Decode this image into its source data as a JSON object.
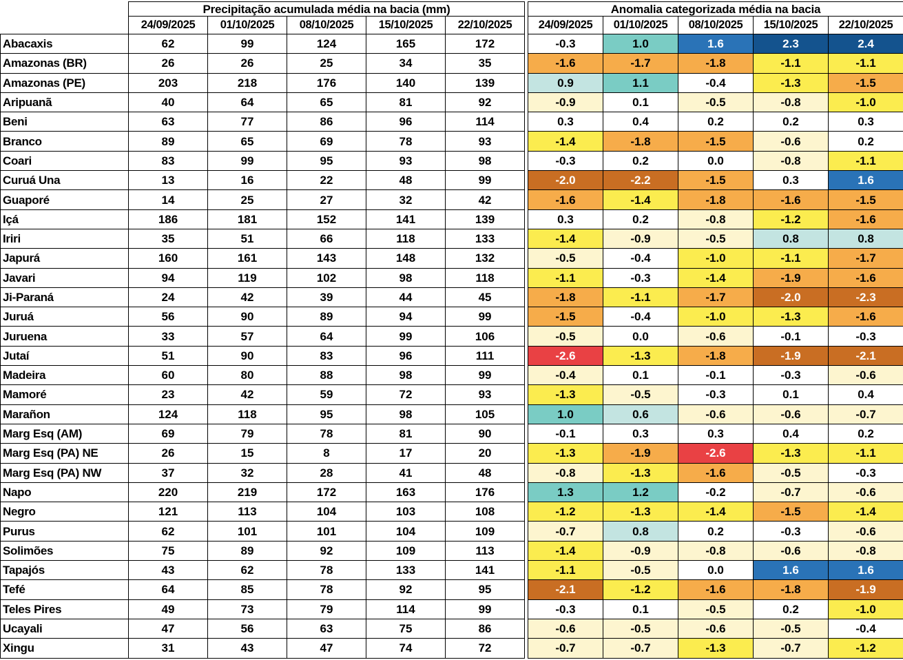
{
  "left_table": {
    "title": "Precipitação acumulada média na bacia (mm)",
    "dates": [
      "24/09/2025",
      "01/10/2025",
      "08/10/2025",
      "15/10/2025",
      "22/10/2025"
    ]
  },
  "right_table": {
    "title": "Anomalia categorizada média na bacia",
    "dates": [
      "24/09/2025",
      "01/10/2025",
      "08/10/2025",
      "15/10/2025",
      "22/10/2025"
    ]
  },
  "anomaly_colors": {
    "p2": {
      "bg": "#14538e",
      "fg": "#ffffff"
    },
    "p15": {
      "bg": "#2a73b7",
      "fg": "#ffffff"
    },
    "p10": {
      "bg": "#7accc4",
      "fg": "#000000"
    },
    "p06": {
      "bg": "#c3e4e1",
      "fg": "#000000"
    },
    "w": {
      "bg": "#ffffff",
      "fg": "#000000"
    },
    "n05": {
      "bg": "#fdf5cf",
      "fg": "#000000"
    },
    "n10": {
      "bg": "#fbec4f",
      "fg": "#000000"
    },
    "n15": {
      "bg": "#f6ac4a",
      "fg": "#000000"
    },
    "n20": {
      "bg": "#c96e23",
      "fg": "#ffffff"
    },
    "n26": {
      "bg": "#e94144",
      "fg": "#ffffff"
    }
  },
  "rows": [
    {
      "name": "Abacaxis",
      "precip": [
        62,
        99,
        124,
        165,
        172
      ],
      "anom": [
        "-0.3",
        "1.0",
        "1.6",
        "2.3",
        "2.4"
      ],
      "cat": [
        "w",
        "p10",
        "p15",
        "p2",
        "p2"
      ]
    },
    {
      "name": "Amazonas (BR)",
      "precip": [
        26,
        26,
        25,
        34,
        35
      ],
      "anom": [
        "-1.6",
        "-1.7",
        "-1.8",
        "-1.1",
        "-1.1"
      ],
      "cat": [
        "n15",
        "n15",
        "n15",
        "n10",
        "n10"
      ]
    },
    {
      "name": "Amazonas (PE)",
      "precip": [
        203,
        218,
        176,
        140,
        139
      ],
      "anom": [
        "0.9",
        "1.1",
        "-0.4",
        "-1.3",
        "-1.5"
      ],
      "cat": [
        "p06",
        "p10",
        "w",
        "n10",
        "n15"
      ]
    },
    {
      "name": "Aripuanã",
      "precip": [
        40,
        64,
        65,
        81,
        92
      ],
      "anom": [
        "-0.9",
        "0.1",
        "-0.5",
        "-0.8",
        "-1.0"
      ],
      "cat": [
        "n05",
        "w",
        "n05",
        "n05",
        "n10"
      ]
    },
    {
      "name": "Beni",
      "precip": [
        63,
        77,
        86,
        96,
        114
      ],
      "anom": [
        "0.3",
        "0.4",
        "0.2",
        "0.2",
        "0.3"
      ],
      "cat": [
        "w",
        "w",
        "w",
        "w",
        "w"
      ]
    },
    {
      "name": "Branco",
      "precip": [
        89,
        65,
        69,
        78,
        93
      ],
      "anom": [
        "-1.4",
        "-1.8",
        "-1.5",
        "-0.6",
        "0.2"
      ],
      "cat": [
        "n10",
        "n15",
        "n15",
        "n05",
        "w"
      ]
    },
    {
      "name": "Coari",
      "precip": [
        83,
        99,
        95,
        93,
        98
      ],
      "anom": [
        "-0.3",
        "0.2",
        "0.0",
        "-0.8",
        "-1.1"
      ],
      "cat": [
        "w",
        "w",
        "w",
        "n05",
        "n10"
      ]
    },
    {
      "name": "Curuá Una",
      "precip": [
        13,
        16,
        22,
        48,
        99
      ],
      "anom": [
        "-2.0",
        "-2.2",
        "-1.5",
        "0.3",
        "1.6"
      ],
      "cat": [
        "n20",
        "n20",
        "n15",
        "w",
        "p15"
      ]
    },
    {
      "name": "Guaporé",
      "precip": [
        14,
        25,
        27,
        32,
        42
      ],
      "anom": [
        "-1.6",
        "-1.4",
        "-1.8",
        "-1.6",
        "-1.5"
      ],
      "cat": [
        "n15",
        "n10",
        "n15",
        "n15",
        "n15"
      ]
    },
    {
      "name": "Içá",
      "precip": [
        186,
        181,
        152,
        141,
        139
      ],
      "anom": [
        "0.3",
        "0.2",
        "-0.8",
        "-1.2",
        "-1.6"
      ],
      "cat": [
        "w",
        "w",
        "n05",
        "n10",
        "n15"
      ]
    },
    {
      "name": "Iriri",
      "precip": [
        35,
        51,
        66,
        118,
        133
      ],
      "anom": [
        "-1.4",
        "-0.9",
        "-0.5",
        "0.8",
        "0.8"
      ],
      "cat": [
        "n10",
        "n05",
        "n05",
        "p06",
        "p06"
      ]
    },
    {
      "name": "Japurá",
      "precip": [
        160,
        161,
        143,
        148,
        132
      ],
      "anom": [
        "-0.5",
        "-0.4",
        "-1.0",
        "-1.1",
        "-1.7"
      ],
      "cat": [
        "n05",
        "w",
        "n10",
        "n10",
        "n15"
      ]
    },
    {
      "name": "Javari",
      "precip": [
        94,
        119,
        102,
        98,
        118
      ],
      "anom": [
        "-1.1",
        "-0.3",
        "-1.4",
        "-1.9",
        "-1.6"
      ],
      "cat": [
        "n10",
        "w",
        "n10",
        "n15",
        "n15"
      ]
    },
    {
      "name": "Ji-Paraná",
      "precip": [
        24,
        42,
        39,
        44,
        45
      ],
      "anom": [
        "-1.8",
        "-1.1",
        "-1.7",
        "-2.0",
        "-2.3"
      ],
      "cat": [
        "n15",
        "n10",
        "n15",
        "n20",
        "n20"
      ]
    },
    {
      "name": "Juruá",
      "precip": [
        56,
        90,
        89,
        94,
        99
      ],
      "anom": [
        "-1.5",
        "-0.4",
        "-1.0",
        "-1.3",
        "-1.6"
      ],
      "cat": [
        "n15",
        "w",
        "n10",
        "n10",
        "n15"
      ]
    },
    {
      "name": "Juruena",
      "precip": [
        33,
        57,
        64,
        99,
        106
      ],
      "anom": [
        "-0.5",
        "0.0",
        "-0.6",
        "-0.1",
        "-0.3"
      ],
      "cat": [
        "n05",
        "w",
        "n05",
        "w",
        "w"
      ]
    },
    {
      "name": "Jutaí",
      "precip": [
        51,
        90,
        83,
        96,
        111
      ],
      "anom": [
        "-2.6",
        "-1.3",
        "-1.8",
        "-1.9",
        "-2.1"
      ],
      "cat": [
        "n26",
        "n10",
        "n15",
        "n20",
        "n20"
      ]
    },
    {
      "name": "Madeira",
      "precip": [
        60,
        80,
        88,
        98,
        99
      ],
      "anom": [
        "-0.4",
        "0.1",
        "-0.1",
        "-0.3",
        "-0.6"
      ],
      "cat": [
        "n05",
        "w",
        "w",
        "w",
        "n05"
      ]
    },
    {
      "name": "Mamoré",
      "precip": [
        23,
        42,
        59,
        72,
        93
      ],
      "anom": [
        "-1.3",
        "-0.5",
        "-0.3",
        "0.1",
        "0.4"
      ],
      "cat": [
        "n10",
        "n05",
        "w",
        "w",
        "w"
      ]
    },
    {
      "name": "Marañon",
      "precip": [
        124,
        118,
        95,
        98,
        105
      ],
      "anom": [
        "1.0",
        "0.6",
        "-0.6",
        "-0.6",
        "-0.7"
      ],
      "cat": [
        "p10",
        "p06",
        "n05",
        "n05",
        "n05"
      ]
    },
    {
      "name": "Marg Esq (AM)",
      "precip": [
        69,
        79,
        78,
        81,
        90
      ],
      "anom": [
        "-0.1",
        "0.3",
        "0.3",
        "0.4",
        "0.2"
      ],
      "cat": [
        "w",
        "w",
        "w",
        "w",
        "w"
      ]
    },
    {
      "name": "Marg Esq (PA) NE",
      "precip": [
        26,
        15,
        8,
        17,
        20
      ],
      "anom": [
        "-1.3",
        "-1.9",
        "-2.6",
        "-1.3",
        "-1.1"
      ],
      "cat": [
        "n10",
        "n15",
        "n26",
        "n10",
        "n10"
      ]
    },
    {
      "name": "Marg Esq (PA) NW",
      "precip": [
        37,
        32,
        28,
        41,
        48
      ],
      "anom": [
        "-0.8",
        "-1.3",
        "-1.6",
        "-0.5",
        "-0.3"
      ],
      "cat": [
        "n05",
        "n10",
        "n15",
        "n05",
        "w"
      ]
    },
    {
      "name": "Napo",
      "precip": [
        220,
        219,
        172,
        163,
        176
      ],
      "anom": [
        "1.3",
        "1.2",
        "-0.2",
        "-0.7",
        "-0.6"
      ],
      "cat": [
        "p10",
        "p10",
        "w",
        "n05",
        "n05"
      ]
    },
    {
      "name": "Negro",
      "precip": [
        121,
        113,
        104,
        103,
        108
      ],
      "anom": [
        "-1.2",
        "-1.3",
        "-1.4",
        "-1.5",
        "-1.4"
      ],
      "cat": [
        "n10",
        "n10",
        "n10",
        "n15",
        "n10"
      ]
    },
    {
      "name": "Purus",
      "precip": [
        62,
        101,
        101,
        104,
        109
      ],
      "anom": [
        "-0.7",
        "0.8",
        "0.2",
        "-0.3",
        "-0.6"
      ],
      "cat": [
        "n05",
        "p06",
        "w",
        "w",
        "n05"
      ]
    },
    {
      "name": "Solimões",
      "precip": [
        75,
        89,
        92,
        109,
        113
      ],
      "anom": [
        "-1.4",
        "-0.9",
        "-0.8",
        "-0.6",
        "-0.8"
      ],
      "cat": [
        "n10",
        "n05",
        "n05",
        "n05",
        "n05"
      ]
    },
    {
      "name": "Tapajós",
      "precip": [
        43,
        62,
        78,
        133,
        141
      ],
      "anom": [
        "-1.1",
        "-0.5",
        "0.0",
        "1.6",
        "1.6"
      ],
      "cat": [
        "n10",
        "n05",
        "w",
        "p15",
        "p15"
      ]
    },
    {
      "name": "Tefé",
      "precip": [
        64,
        85,
        78,
        92,
        95
      ],
      "anom": [
        "-2.1",
        "-1.2",
        "-1.6",
        "-1.8",
        "-1.9"
      ],
      "cat": [
        "n20",
        "n10",
        "n15",
        "n15",
        "n20"
      ]
    },
    {
      "name": "Teles Pires",
      "precip": [
        49,
        73,
        79,
        114,
        99
      ],
      "anom": [
        "-0.3",
        "0.1",
        "-0.5",
        "0.2",
        "-1.0"
      ],
      "cat": [
        "w",
        "w",
        "n05",
        "w",
        "n10"
      ]
    },
    {
      "name": "Ucayali",
      "precip": [
        47,
        56,
        63,
        75,
        86
      ],
      "anom": [
        "-0.6",
        "-0.5",
        "-0.6",
        "-0.5",
        "-0.4"
      ],
      "cat": [
        "n05",
        "n05",
        "n05",
        "n05",
        "w"
      ]
    },
    {
      "name": "Xingu",
      "precip": [
        31,
        43,
        47,
        74,
        72
      ],
      "anom": [
        "-0.7",
        "-0.7",
        "-1.3",
        "-0.7",
        "-1.2"
      ],
      "cat": [
        "n05",
        "n05",
        "n10",
        "n05",
        "n10"
      ]
    }
  ]
}
